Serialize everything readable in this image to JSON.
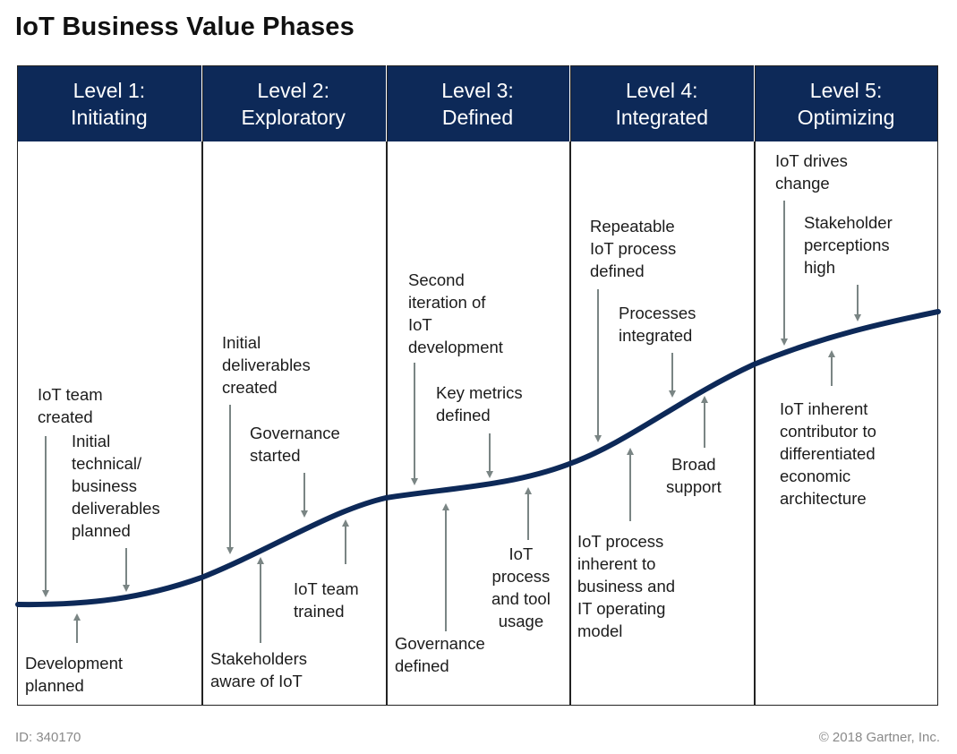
{
  "title": "IoT Business Value Phases",
  "levels": [
    {
      "num": "Level 1:",
      "name": "Initiating"
    },
    {
      "num": "Level 2:",
      "name": "Exploratory"
    },
    {
      "num": "Level 3:",
      "name": "Defined"
    },
    {
      "num": "Level 4:",
      "name": "Integrated"
    },
    {
      "num": "Level 5:",
      "name": "Optimizing"
    }
  ],
  "labels": {
    "l1_team": "IoT team\ncreated",
    "l1_initial": "Initial\ntechnical/\nbusiness\ndeliverables\nplanned",
    "l1_dev": "Development\nplanned",
    "l2_initial": "Initial\ndeliverables\ncreated",
    "l2_gov": "Governance\nstarted",
    "l2_trained": "IoT team\ntrained",
    "l2_stake": "Stakeholders\naware of IoT",
    "l3_second": "Second\niteration of\nIoT\ndevelopment",
    "l3_key": "Key metrics\ndefined",
    "l3_gov": "Governance\ndefined",
    "l3_process": "IoT\nprocess\nand tool\nusage",
    "l4_repeat": "Repeatable\nIoT process\ndefined",
    "l4_proc": "Processes\nintegrated",
    "l4_broad": "Broad\nsupport",
    "l4_inherent": "IoT process\ninherent to\nbusiness and\nIT operating\nmodel",
    "l5_drives": "IoT drives\nchange",
    "l5_stake": "Stakeholder\nperceptions\nhigh",
    "l5_contrib": "IoT inherent\ncontributor to\ndifferentiated\neconomic\narchitecture"
  },
  "footer": {
    "id": "ID: 340170",
    "copyright": "© 2018 Gartner, Inc."
  },
  "colors": {
    "header": "#0d2958",
    "curve": "#0d2958",
    "arrow": "#7a8584"
  }
}
